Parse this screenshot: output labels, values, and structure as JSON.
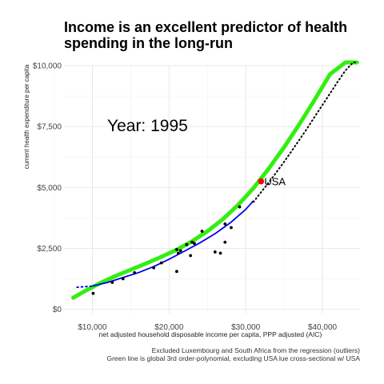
{
  "chart_data": {
    "type": "scatter",
    "title": "Income is an excellent predictor of health spending in the long-run",
    "xlabel": "net adjusted household disposable income per capita, PPP adjusted (AIC)",
    "ylabel": "current health expenditure per capita",
    "x_ticks": [
      {
        "value": 10000,
        "label": "$10,000"
      },
      {
        "value": 20000,
        "label": "$20,000"
      },
      {
        "value": 30000,
        "label": "$30,000"
      },
      {
        "value": 40000,
        "label": "$40,000"
      }
    ],
    "y_ticks": [
      {
        "value": 0,
        "label": "$0"
      },
      {
        "value": 2500,
        "label": "$2,500"
      },
      {
        "value": 5000,
        "label": "$5,000"
      },
      {
        "value": 7500,
        "label": "$7,500"
      },
      {
        "value": 10000,
        "label": "$10,000"
      }
    ],
    "xlim": [
      6300,
      44900
    ],
    "ylim": [
      -180,
      10000
    ],
    "grid": true,
    "annotation": "Year: 1995",
    "points": [
      {
        "x": 10100,
        "y": 650
      },
      {
        "x": 12600,
        "y": 1100
      },
      {
        "x": 14000,
        "y": 1250
      },
      {
        "x": 15500,
        "y": 1500
      },
      {
        "x": 18000,
        "y": 1700
      },
      {
        "x": 19000,
        "y": 1900
      },
      {
        "x": 21000,
        "y": 2450
      },
      {
        "x": 21200,
        "y": 2300
      },
      {
        "x": 21500,
        "y": 2400
      },
      {
        "x": 22300,
        "y": 2650
      },
      {
        "x": 23000,
        "y": 2750
      },
      {
        "x": 23300,
        "y": 2700
      },
      {
        "x": 24300,
        "y": 3200
      },
      {
        "x": 22800,
        "y": 2200
      },
      {
        "x": 21000,
        "y": 1550
      },
      {
        "x": 26000,
        "y": 2350
      },
      {
        "x": 26700,
        "y": 2300
      },
      {
        "x": 27300,
        "y": 2750
      },
      {
        "x": 27300,
        "y": 3500
      },
      {
        "x": 28100,
        "y": 3350
      },
      {
        "x": 29200,
        "y": 4200
      }
    ],
    "highlight": {
      "label": "USA",
      "x": 32000,
      "y": 5250,
      "color": "#ff0000"
    },
    "lines": {
      "green_fit": {
        "color": "#33ee11",
        "x": [
          7500,
          9000,
          11000,
          13000,
          15000,
          17000,
          19000,
          21000,
          23000,
          25000,
          27000,
          29000,
          31000,
          33000,
          35000,
          37000,
          39000,
          41000,
          43000,
          44500
        ],
        "y": [
          470,
          740,
          1070,
          1360,
          1620,
          1880,
          2150,
          2440,
          2790,
          3200,
          3690,
          4280,
          4970,
          5770,
          6650,
          7600,
          8600,
          9650,
          10700,
          11500
        ]
      },
      "blue_loess": {
        "color": "#0000ee",
        "x": [
          10000,
          12000,
          14000,
          16000,
          18000,
          20000,
          22000,
          24000,
          26000,
          28000,
          30000,
          31000
        ],
        "y": [
          950,
          1100,
          1300,
          1500,
          1750,
          2050,
          2380,
          2720,
          3100,
          3550,
          4100,
          4450
        ]
      },
      "blue_dotted": {
        "color": "#0000ee",
        "x": [
          8000,
          10000
        ],
        "y": [
          900,
          950
        ]
      },
      "black_dotted": {
        "color": "#000000",
        "x": [
          31000,
          32000,
          33000,
          34000,
          35000,
          36000,
          37000,
          38000,
          39000,
          40000,
          41000,
          42000,
          43000,
          44000,
          44600
        ],
        "y": [
          4400,
          4800,
          5200,
          5620,
          6050,
          6500,
          6960,
          7420,
          7900,
          8380,
          8860,
          9340,
          9800,
          10250,
          10500
        ]
      }
    }
  },
  "captions": {
    "line1": "Excluded Luxembourg and South Africa from the regression (outliers)",
    "line2": "Green line is global 3rd order-polynomial, excluding USA lue cross-sectional w/ USA"
  }
}
